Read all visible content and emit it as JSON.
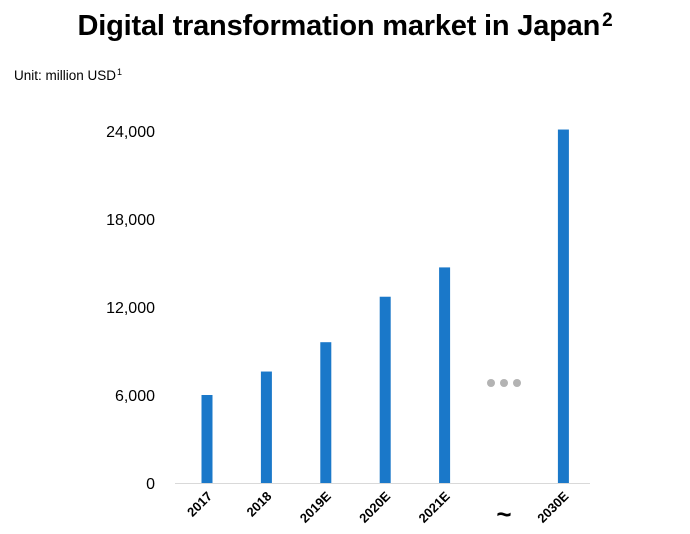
{
  "title": {
    "text": "Digital transformation market in Japan",
    "sup": "2"
  },
  "unit": {
    "text": "Unit: million USD",
    "sup": "1"
  },
  "colors": {
    "bar": "#1a78c9",
    "axis": "#d9d9d9",
    "ellipsis": "#b3b3b3"
  },
  "chart_data": {
    "type": "bar",
    "categories": [
      "2017",
      "2018",
      "2019E",
      "2020E",
      "2021E",
      "~",
      "2030E"
    ],
    "values": [
      6000,
      7600,
      9600,
      12700,
      14700,
      null,
      24100
    ],
    "ylim": [
      0,
      24000
    ],
    "yticks": [
      0,
      6000,
      12000,
      18000,
      24000
    ],
    "ytick_labels": [
      "0",
      "6,000",
      "12,000",
      "18,000",
      "24,000"
    ],
    "axis_break": {
      "category_index": 5,
      "marker": "ellipsis"
    },
    "title": "Digital transformation market in Japan",
    "xlabel": "",
    "ylabel": "Unit: million USD",
    "grid": false,
    "legend": "none"
  }
}
